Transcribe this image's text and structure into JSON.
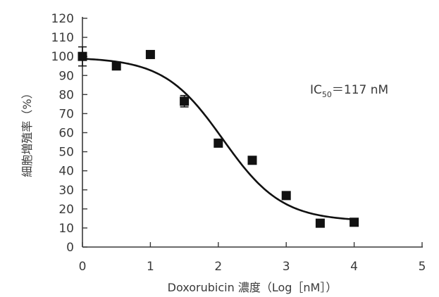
{
  "chart_data": {
    "type": "scatter",
    "xlabel": "Doxorubicin 濃度（Log［nM］）",
    "ylabel": "細胞増殖率（%）",
    "xlim": [
      0,
      5
    ],
    "ylim": [
      0,
      120
    ],
    "xticks": [
      "0",
      "1",
      "2",
      "3",
      "4",
      "5"
    ],
    "yticks": [
      "0",
      "10",
      "20",
      "30",
      "40",
      "50",
      "60",
      "70",
      "80",
      "90",
      "100",
      "110",
      "120"
    ],
    "series": [
      {
        "points": [
          {
            "x": 0,
            "y": 100,
            "err": 5
          },
          {
            "x": 0.5,
            "y": 95
          },
          {
            "x": 1.0,
            "y": 101
          },
          {
            "x": 1.5,
            "y": 76.5,
            "err": 3
          },
          {
            "x": 2.0,
            "y": 54.5
          },
          {
            "x": 2.5,
            "y": 45.5
          },
          {
            "x": 3.0,
            "y": 27
          },
          {
            "x": 3.5,
            "y": 12.5
          },
          {
            "x": 4.0,
            "y": 13
          }
        ],
        "fit": {
          "model": "4PL",
          "top": 99.5,
          "bottom": 13.5,
          "logIC50": 2.068,
          "hill": 1.0,
          "x_range": [
            0,
            4
          ]
        }
      }
    ],
    "annotation": {
      "prefix": "IC",
      "subscript": "50",
      "suffix": "＝117 nM"
    },
    "grid": false,
    "legend": "none",
    "marker_color": "#111111",
    "line_color": "#111111",
    "axis_color": "#3a3a3a"
  }
}
